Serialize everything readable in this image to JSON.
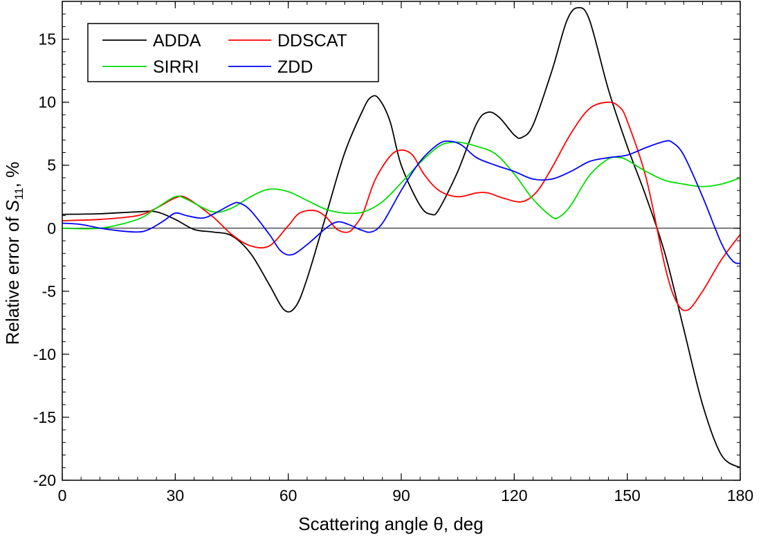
{
  "chart_data": {
    "type": "line",
    "xlabel": "Scattering angle θ, deg",
    "ylabel_parts": {
      "pre": "Relative error of ",
      "symbol": "S",
      "sub": "11",
      "post": ", %"
    },
    "xlim": [
      0,
      180
    ],
    "ylim": [
      -20,
      18
    ],
    "xticks": [
      0,
      30,
      60,
      90,
      120,
      150,
      180
    ],
    "yticks": [
      -20,
      -15,
      -10,
      -5,
      0,
      5,
      10,
      15
    ],
    "xtick_labels": [
      "0",
      "30",
      "60",
      "90",
      "120",
      "150",
      "180"
    ],
    "ytick_labels": [
      "-20",
      "-15",
      "-10",
      "-5",
      "0",
      "5",
      "10",
      "15"
    ],
    "x_minor_step": 5,
    "y_minor_step": 1,
    "zero_line": true,
    "legend": {
      "placement": "top-left",
      "entries": [
        "ADDA",
        "DDSCAT",
        "SIRRI",
        "ZDD"
      ]
    },
    "series": [
      {
        "name": "ADDA",
        "color": "#000000",
        "x": [
          0,
          10,
          20,
          25,
          30,
          35,
          40,
          45,
          50,
          55,
          59,
          62,
          65,
          70,
          75,
          80,
          82,
          84,
          87,
          90,
          95,
          98,
          100,
          105,
          110,
          113,
          116,
          120,
          122,
          125,
          130,
          134,
          137,
          140,
          145,
          150,
          155,
          160,
          165,
          170,
          175,
          180
        ],
        "y": [
          1.1,
          1.15,
          1.3,
          1.3,
          0.7,
          -0.1,
          -0.3,
          -0.6,
          -2.0,
          -4.5,
          -6.5,
          -6.2,
          -4.0,
          1.0,
          6.0,
          9.5,
          10.4,
          10.3,
          8.5,
          5.0,
          1.8,
          1.1,
          1.5,
          4.5,
          8.3,
          9.2,
          8.8,
          7.4,
          7.2,
          8.2,
          12.5,
          16.5,
          17.5,
          16.5,
          11.0,
          6.5,
          2.5,
          -2.0,
          -8.0,
          -14.0,
          -18.0,
          -19.0
        ]
      },
      {
        "name": "DDSCAT",
        "color": "#ff0000",
        "x": [
          0,
          10,
          20,
          25,
          30,
          33,
          40,
          45,
          50,
          55,
          60,
          63,
          67,
          70,
          73,
          76,
          78,
          80,
          83,
          87,
          90,
          93,
          96,
          100,
          105,
          110,
          113,
          117,
          122,
          126,
          130,
          135,
          140,
          145,
          148,
          150,
          155,
          160,
          163,
          166,
          170,
          175,
          180
        ],
        "y": [
          0.6,
          0.7,
          1.0,
          1.6,
          2.4,
          2.4,
          0.9,
          -0.5,
          -1.4,
          -1.4,
          0.2,
          1.2,
          1.4,
          0.9,
          -0.1,
          -0.3,
          0.3,
          1.3,
          3.8,
          5.7,
          6.2,
          5.8,
          4.3,
          3.0,
          2.5,
          2.8,
          2.8,
          2.4,
          2.1,
          2.9,
          4.8,
          7.5,
          9.5,
          10.0,
          9.6,
          8.5,
          4.0,
          -3.0,
          -5.8,
          -6.5,
          -5.0,
          -2.5,
          -0.5
        ]
      },
      {
        "name": "SIRRI",
        "color": "#00dd00",
        "x": [
          0,
          10,
          20,
          25,
          30,
          33,
          40,
          45,
          50,
          55,
          60,
          65,
          70,
          75,
          80,
          85,
          90,
          95,
          100,
          103,
          106,
          110,
          115,
          120,
          125,
          130,
          132,
          135,
          140,
          145,
          148,
          150,
          155,
          160,
          165,
          170,
          175,
          180
        ],
        "y": [
          0.0,
          0.0,
          0.7,
          1.6,
          2.5,
          2.3,
          1.3,
          1.6,
          2.5,
          3.1,
          2.9,
          2.2,
          1.5,
          1.2,
          1.3,
          2.1,
          3.6,
          5.2,
          6.5,
          6.8,
          6.8,
          6.5,
          5.9,
          4.3,
          2.3,
          0.9,
          0.9,
          1.8,
          4.2,
          5.5,
          5.6,
          5.4,
          4.5,
          3.8,
          3.5,
          3.3,
          3.5,
          4.0
        ]
      },
      {
        "name": "ZDD",
        "color": "#0000ff",
        "x": [
          0,
          5,
          10,
          15,
          20,
          23,
          27,
          30,
          33,
          37,
          40,
          45,
          47,
          50,
          55,
          58,
          61,
          65,
          70,
          73,
          76,
          79,
          82,
          85,
          90,
          95,
          100,
          103,
          106,
          110,
          115,
          120,
          125,
          130,
          135,
          140,
          145,
          150,
          155,
          160,
          162,
          165,
          170,
          175,
          178,
          180
        ],
        "y": [
          0.4,
          0.3,
          0.0,
          -0.2,
          -0.3,
          -0.1,
          0.6,
          1.2,
          1.0,
          0.8,
          1.1,
          1.9,
          2.0,
          1.4,
          -0.5,
          -1.8,
          -2.1,
          -1.3,
          0.0,
          0.5,
          0.3,
          -0.1,
          -0.3,
          0.4,
          3.0,
          5.3,
          6.7,
          6.9,
          6.6,
          5.6,
          5.0,
          4.5,
          3.9,
          3.9,
          4.5,
          5.3,
          5.6,
          5.8,
          6.4,
          6.9,
          6.8,
          5.8,
          2.5,
          -1.2,
          -2.6,
          -2.8
        ]
      }
    ]
  }
}
